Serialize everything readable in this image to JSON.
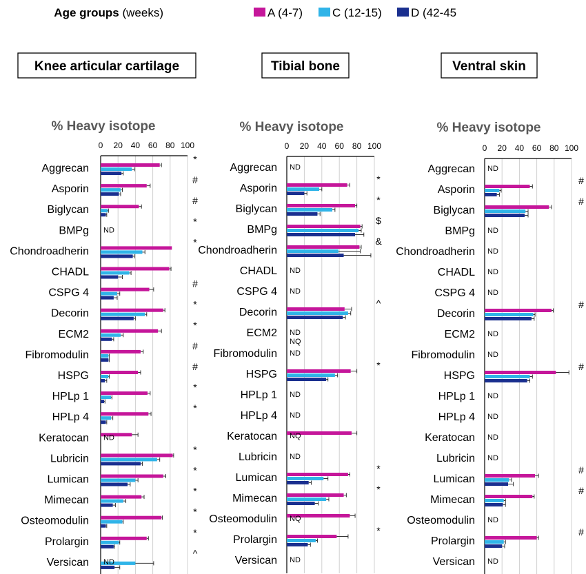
{
  "legend": {
    "title": "Age groups",
    "title_suffix": "(weeks)",
    "items": [
      {
        "label": "A (4-7)",
        "color": "#c5169a"
      },
      {
        "label": "C (12-15)",
        "color": "#30b4e8"
      },
      {
        "label": "D (42-45",
        "color": "#1a2f8f"
      }
    ]
  },
  "colors": {
    "A": "#c5169a",
    "C": "#30b4e8",
    "D": "#1a2f8f",
    "axis_title": "#595959",
    "grid": "#d0d0d0"
  },
  "chart_data": [
    {
      "type": "bar",
      "orientation": "horizontal",
      "title": "Knee articular cartilage",
      "axis_title": "% Heavy isotope",
      "xlim": [
        0,
        100
      ],
      "xticks": [
        "0",
        "20",
        "40",
        "60",
        "80",
        "100"
      ],
      "grid": true,
      "categories": [
        "Aggrecan",
        "Asporin",
        "Biglycan",
        "BMPg",
        "Chondroadherin",
        "CHADL",
        "CSPG 4",
        "Decorin",
        "ECM2",
        "Fibromodulin",
        "HSPG",
        "HPLp 1",
        "HPLp 4",
        "Keratocan",
        "Lubricin",
        "Lumican",
        "Mimecan",
        "Osteomodulin",
        "Prolargin",
        "Versican"
      ],
      "series": [
        {
          "name": "A (4-7)",
          "values": [
            68,
            53,
            44,
            null,
            82,
            79,
            56,
            72,
            66,
            46,
            43,
            54,
            55,
            36,
            83,
            72,
            47,
            70,
            53,
            null
          ],
          "errors": [
            2,
            4,
            3,
            null,
            0,
            2,
            5,
            2,
            4,
            3,
            3,
            3,
            3,
            7,
            1,
            3,
            3,
            1,
            2,
            null
          ]
        },
        {
          "name": "C (12-15)",
          "values": [
            36,
            23,
            8,
            null,
            48,
            33,
            19,
            51,
            23,
            9,
            9,
            12,
            12,
            null,
            65,
            40,
            26,
            25,
            21,
            40
          ],
          "errors": [
            3,
            2,
            1,
            null,
            3,
            2,
            3,
            2,
            3,
            1,
            1,
            1,
            2,
            null,
            3,
            3,
            3,
            1,
            1,
            21
          ]
        },
        {
          "name": "D (42-45",
          "values": [
            24,
            21,
            6,
            null,
            37,
            20,
            15,
            38,
            13,
            9,
            5,
            4,
            6,
            null,
            46,
            31,
            14,
            6,
            15,
            16
          ],
          "errors": [
            2,
            2,
            1,
            null,
            2,
            5,
            4,
            2,
            2,
            1,
            2,
            1,
            1,
            null,
            2,
            3,
            3,
            1,
            1,
            6
          ]
        }
      ],
      "value_notes": [
        "",
        "",
        "",
        "ND",
        "",
        "",
        "",
        "",
        "",
        "",
        "",
        "",
        "",
        "ND",
        "",
        "",
        "",
        "",
        "",
        "ND"
      ],
      "significance": [
        "*",
        "#",
        "#",
        "*",
        "*",
        "",
        "#",
        "*",
        "*",
        "#",
        "#",
        "*",
        "*",
        "",
        "*",
        "*",
        "*",
        "*",
        "*",
        "^"
      ]
    },
    {
      "type": "bar",
      "orientation": "horizontal",
      "title": "Tibial bone",
      "axis_title": "% Heavy isotope",
      "xlim": [
        0,
        100
      ],
      "xticks": [
        "0",
        "20",
        "40",
        "60",
        "80",
        "100"
      ],
      "grid": true,
      "categories": [
        "Aggrecan",
        "Asporin",
        "Biglycan",
        "BMPg",
        "Chondroadherin",
        "CHADL",
        "CSPG 4",
        "Decorin",
        "ECM2",
        "Fibromodulin",
        "HSPG",
        "HPLp 1",
        "HPLp 4",
        "Keratocan",
        "Lubricin",
        "Lumican",
        "Mimecan",
        "Osteomodulin",
        "Prolargin",
        "Versican"
      ],
      "series": [
        {
          "name": "A (4-7)",
          "values": [
            null,
            69,
            78,
            84,
            83,
            null,
            null,
            66,
            null,
            null,
            73,
            null,
            null,
            74,
            null,
            70,
            65,
            72,
            57,
            null
          ],
          "errors": [
            null,
            3,
            2,
            2,
            2,
            null,
            null,
            8,
            null,
            null,
            7,
            null,
            null,
            6,
            null,
            2,
            3,
            6,
            13,
            null
          ]
        },
        {
          "name": "C (12-15)",
          "values": [
            null,
            37,
            52,
            82,
            59,
            null,
            null,
            70,
            null,
            null,
            55,
            null,
            null,
            null,
            null,
            42,
            45,
            null,
            33,
            null
          ],
          "errors": [
            null,
            3,
            3,
            3,
            25,
            null,
            null,
            3,
            null,
            null,
            3,
            null,
            null,
            null,
            null,
            5,
            3,
            null,
            2,
            null
          ]
        },
        {
          "name": "D (42-45",
          "values": [
            null,
            20,
            35,
            78,
            65,
            null,
            null,
            64,
            null,
            null,
            45,
            null,
            null,
            null,
            null,
            25,
            32,
            null,
            24,
            null
          ],
          "errors": [
            null,
            3,
            3,
            10,
            31,
            null,
            null,
            3,
            null,
            null,
            2,
            null,
            null,
            null,
            null,
            3,
            4,
            null,
            3,
            null
          ]
        }
      ],
      "value_notes": [
        "ND",
        "",
        "",
        "",
        "",
        "ND",
        "ND",
        "",
        "ND|NQ",
        "ND",
        "",
        "ND",
        "ND",
        "NQ",
        "ND",
        "",
        "",
        "NQ",
        "",
        "ND"
      ],
      "significance": [
        "",
        "*",
        "*",
        "$",
        "&",
        "",
        "",
        "^",
        "",
        "",
        "*",
        "",
        "",
        "",
        "",
        "*",
        "*",
        "",
        "*",
        ""
      ]
    },
    {
      "type": "bar",
      "orientation": "horizontal",
      "title": "Ventral skin",
      "axis_title": "% Heavy isotope",
      "xlim": [
        0,
        100
      ],
      "xticks": [
        "0",
        "20",
        "40",
        "60",
        "80",
        "100"
      ],
      "grid": true,
      "categories": [
        "Aggrecan",
        "Asporin",
        "Biglycan",
        "BMPg",
        "Chondroadherin",
        "CHADL",
        "CSPG 4",
        "Decorin",
        "ECM2",
        "Fibromodulin",
        "HSPG",
        "HPLp 1",
        "HPLp 4",
        "Keratocan",
        "Lubricin",
        "Lumican",
        "Mimecan",
        "Osteomodulin",
        "Prolargin",
        "Versican"
      ],
      "series": [
        {
          "name": "A (4-7)",
          "values": [
            null,
            52,
            74,
            null,
            null,
            null,
            null,
            77,
            null,
            null,
            82,
            null,
            null,
            null,
            null,
            58,
            55,
            null,
            60,
            null
          ],
          "errors": [
            null,
            3,
            3,
            null,
            null,
            null,
            null,
            2,
            null,
            null,
            15,
            null,
            null,
            null,
            null,
            4,
            2,
            null,
            2,
            null
          ]
        },
        {
          "name": "C (12-15)",
          "values": [
            null,
            17,
            47,
            null,
            null,
            null,
            null,
            56,
            null,
            null,
            52,
            null,
            null,
            null,
            null,
            28,
            22,
            null,
            22,
            null
          ],
          "errors": [
            null,
            2,
            3,
            null,
            null,
            null,
            null,
            2,
            null,
            null,
            3,
            null,
            null,
            null,
            null,
            3,
            2,
            null,
            2,
            null
          ]
        },
        {
          "name": "D (42-45",
          "values": [
            null,
            14,
            46,
            null,
            null,
            null,
            null,
            54,
            null,
            null,
            49,
            null,
            null,
            null,
            null,
            27,
            21,
            null,
            20,
            null
          ],
          "errors": [
            null,
            3,
            4,
            null,
            null,
            null,
            null,
            3,
            null,
            null,
            3,
            null,
            null,
            null,
            null,
            6,
            3,
            null,
            3,
            null
          ]
        }
      ],
      "value_notes": [
        "ND",
        "",
        "",
        "ND",
        "ND",
        "ND",
        "ND",
        "",
        "ND",
        "ND",
        "",
        "ND",
        "ND",
        "ND",
        "ND",
        "",
        "",
        "ND",
        "",
        "ND"
      ],
      "significance": [
        "",
        "#",
        "#",
        "",
        "",
        "",
        "",
        "#",
        "",
        "",
        "#",
        "",
        "",
        "",
        "",
        "#",
        "#",
        "",
        "#",
        ""
      ]
    }
  ]
}
